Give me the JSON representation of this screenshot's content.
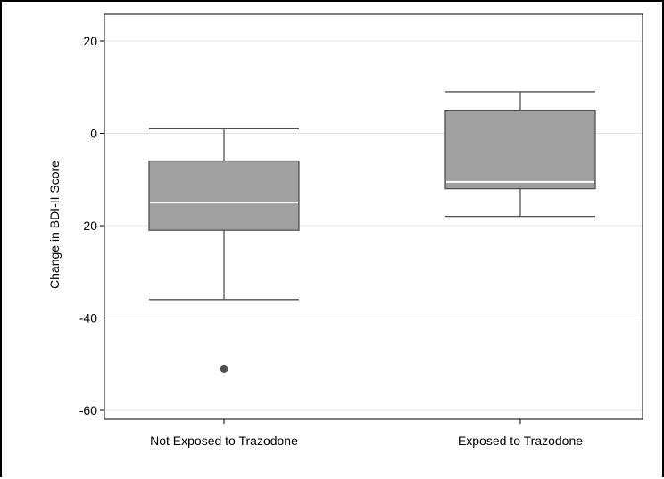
{
  "chart_data": {
    "type": "box",
    "title": "",
    "xlabel": "",
    "ylabel": "Change in BDI-II Score",
    "ylim": [
      -62,
      21
    ],
    "yticks": [
      20,
      0,
      -20,
      -40,
      -60
    ],
    "ytick_labels": [
      "20",
      "0",
      "-20",
      "-40",
      "-60"
    ],
    "grid": true,
    "categories": [
      "Not Exposed to Trazodone",
      "Exposed to Trazodone"
    ],
    "boxes": [
      {
        "category": "Not Exposed to Trazodone",
        "whisker_low": -36,
        "q1": -21,
        "median": -15,
        "q3": -6,
        "whisker_high": 1,
        "outliers": [
          -51
        ]
      },
      {
        "category": "Exposed to Trazodone",
        "whisker_low": -18,
        "q1": -12,
        "median": -10.5,
        "q3": 5,
        "whisker_high": 9,
        "outliers": []
      }
    ],
    "colors": {
      "box_fill": "#a0a0a0",
      "box_stroke": "#505050",
      "median": "#ffffff",
      "outlier": "#505050",
      "grid": "#e4e4e4"
    }
  }
}
